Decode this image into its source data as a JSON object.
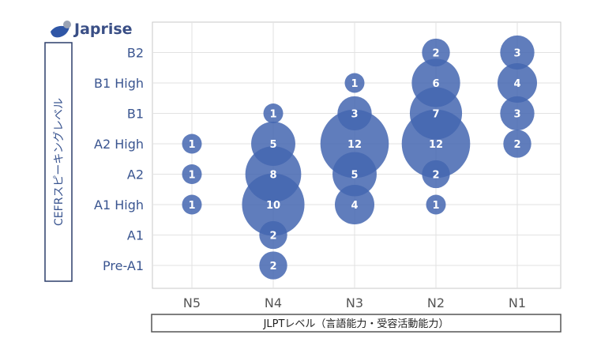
{
  "logo": {
    "text": "Japrise"
  },
  "chart_data": {
    "type": "scatter",
    "subtype": "bubble",
    "xlabel": "JLPTレベル（言語能力・受容活動能力）",
    "ylabel": "CEFRスピーキングレベル",
    "x_categories": [
      "N5",
      "N4",
      "N3",
      "N2",
      "N1"
    ],
    "y_categories": [
      "Pre-A1",
      "A1",
      "A1 High",
      "A2",
      "A2 High",
      "B1",
      "B1 High",
      "B2"
    ],
    "grid": true,
    "color": "#4466b0",
    "points": [
      {
        "x": "N5",
        "y": "A2 High",
        "value": 1
      },
      {
        "x": "N5",
        "y": "A2",
        "value": 1
      },
      {
        "x": "N5",
        "y": "A1 High",
        "value": 1
      },
      {
        "x": "N4",
        "y": "B1",
        "value": 1
      },
      {
        "x": "N4",
        "y": "A2 High",
        "value": 5
      },
      {
        "x": "N4",
        "y": "A2",
        "value": 8
      },
      {
        "x": "N4",
        "y": "A1 High",
        "value": 10
      },
      {
        "x": "N4",
        "y": "A1",
        "value": 2
      },
      {
        "x": "N4",
        "y": "Pre-A1",
        "value": 2
      },
      {
        "x": "N3",
        "y": "B1 High",
        "value": 1
      },
      {
        "x": "N3",
        "y": "B1",
        "value": 3
      },
      {
        "x": "N3",
        "y": "A2 High",
        "value": 12
      },
      {
        "x": "N3",
        "y": "A2",
        "value": 5
      },
      {
        "x": "N3",
        "y": "A1 High",
        "value": 4
      },
      {
        "x": "N2",
        "y": "B2",
        "value": 2
      },
      {
        "x": "N2",
        "y": "B1 High",
        "value": 6
      },
      {
        "x": "N2",
        "y": "B1",
        "value": 7
      },
      {
        "x": "N2",
        "y": "A2 High",
        "value": 12
      },
      {
        "x": "N2",
        "y": "A2",
        "value": 2
      },
      {
        "x": "N2",
        "y": "A1 High",
        "value": 1
      },
      {
        "x": "N1",
        "y": "B2",
        "value": 3
      },
      {
        "x": "N1",
        "y": "B1 High",
        "value": 4
      },
      {
        "x": "N1",
        "y": "B1",
        "value": 3
      },
      {
        "x": "N1",
        "y": "A2 High",
        "value": 2
      }
    ]
  }
}
